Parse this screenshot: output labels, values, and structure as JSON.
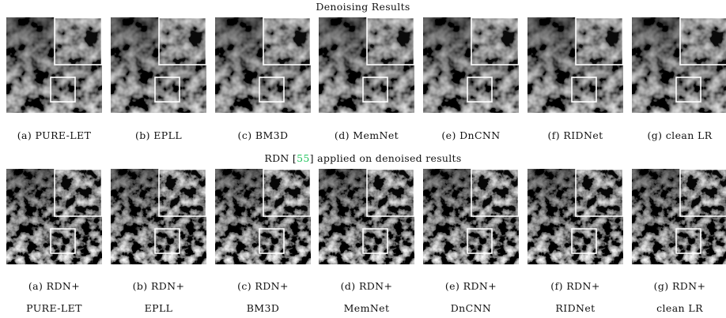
{
  "figure": {
    "row1_title": "Denoising Results",
    "row2_title_prefix": "RDN [",
    "row2_title_ref": "55",
    "row2_title_suffix": "] applied on denoised results",
    "ref_color": "#22c55e",
    "row1_captions": [
      "(a) PURE-LET",
      "(b) EPLL",
      "(c) BM3D",
      "(d) MemNet",
      "(e) DnCNN",
      "(f) RIDNet",
      "(g) clean LR"
    ],
    "row2_captions_line1": [
      "(a) RDN+",
      "(b) RDN+",
      "(c) RDN+",
      "(d) RDN+",
      "(e) RDN+",
      "(f) RDN+",
      "(g) RDN+"
    ],
    "row2_captions_line2": [
      "PURE-LET",
      "EPLL",
      "BM3D",
      "MemNet",
      "DnCNN",
      "RIDNet",
      "clean LR"
    ]
  }
}
